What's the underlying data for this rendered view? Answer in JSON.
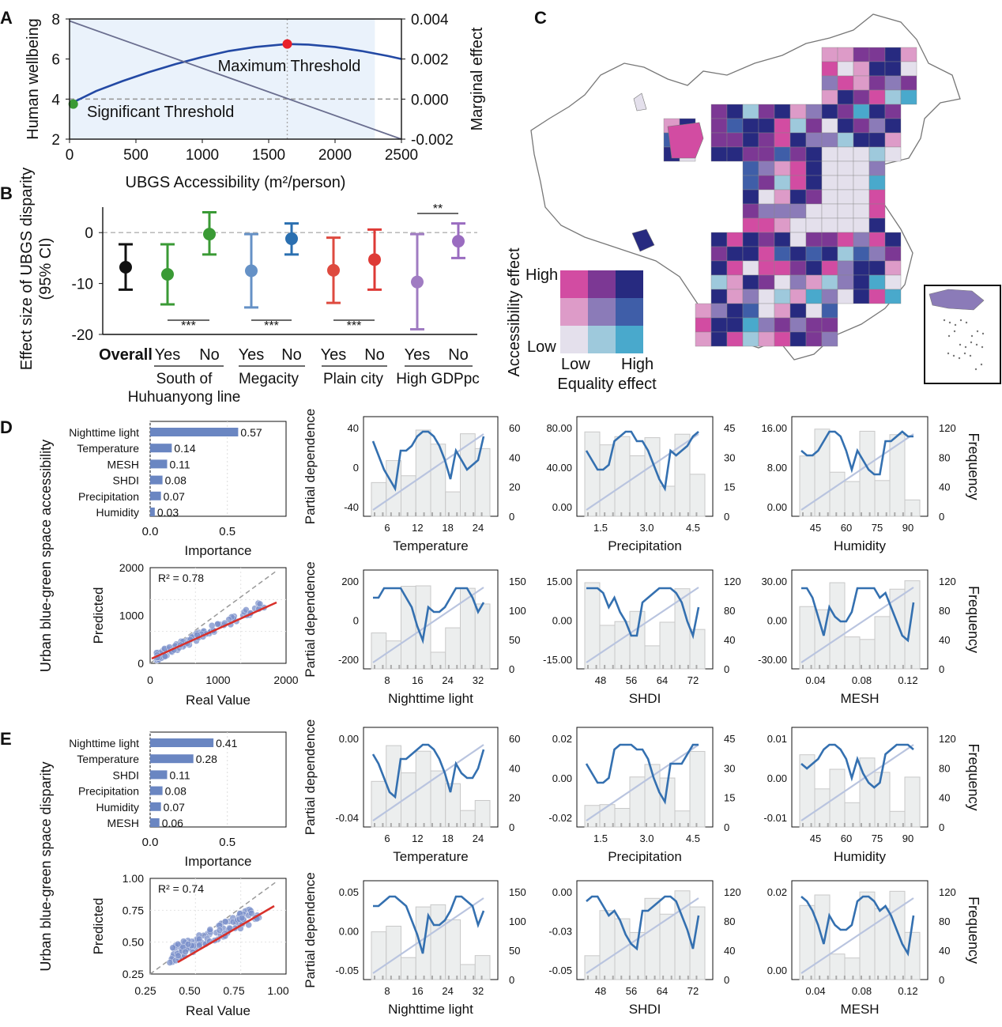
{
  "panel_labels": {
    "a": "A",
    "b": "B",
    "c": "C",
    "d": "D",
    "e": "E"
  },
  "chart_data": [
    {
      "id": "A",
      "type": "line",
      "xlabel": "UBGS Accessibility (m²/person)",
      "ylabel_left": "Human wellbeing",
      "ylabel_right": "Marginal effect",
      "xlim": [
        0,
        2500
      ],
      "ylim_left": [
        2,
        8
      ],
      "ylim_right": [
        -0.002,
        0.004
      ],
      "xticks": [
        0,
        500,
        1000,
        1500,
        2000,
        2500
      ],
      "yticks_left": [
        2,
        4,
        6,
        8
      ],
      "yticks_right": [
        "-0.002",
        "0.000",
        "0.002",
        "0.004"
      ],
      "shaded_range": [
        0,
        2300
      ],
      "series": [
        {
          "axis": "left",
          "x": [
            0,
            200,
            400,
            600,
            800,
            1000,
            1200,
            1400,
            1640,
            1800,
            2000,
            2200,
            2400,
            2500
          ],
          "y": [
            3.75,
            4.4,
            4.9,
            5.35,
            5.75,
            6.1,
            6.4,
            6.6,
            6.75,
            6.72,
            6.6,
            6.4,
            6.15,
            6.0
          ]
        },
        {
          "axis": "right",
          "x": [
            0,
            2500
          ],
          "y": [
            0.0039,
            -0.002
          ]
        }
      ],
      "annotations": [
        {
          "text": "Maximum Threshold",
          "x": 1640,
          "y": 6.75,
          "color": "#e8202a"
        },
        {
          "text": "Significant Threshold",
          "x": 28,
          "y": 3.75,
          "color": "#3a9a35"
        }
      ]
    },
    {
      "id": "B",
      "type": "errorbar",
      "ylabel": "Effect size of UBGS disparity (95% CI)",
      "ylim": [
        -20,
        5
      ],
      "yticks": [
        0,
        -10,
        -20
      ],
      "points": [
        {
          "label": "Overall",
          "mean": -6.8,
          "lo": -11.2,
          "hi": -2.3,
          "color": "#111111"
        },
        {
          "label": "Yes",
          "mean": -8.2,
          "lo": -14.1,
          "hi": -2.3,
          "color": "#3a9a35"
        },
        {
          "label": "No",
          "mean": -0.3,
          "lo": -4.3,
          "hi": 4.0,
          "color": "#3a9a35"
        },
        {
          "label": "Yes",
          "mean": -7.5,
          "lo": -14.7,
          "hi": -0.3,
          "color": "#6591c6"
        },
        {
          "label": "No",
          "mean": -1.2,
          "lo": -4.3,
          "hi": 1.8,
          "color": "#2a6fb0"
        },
        {
          "label": "Yes",
          "mean": -7.4,
          "lo": -13.8,
          "hi": -1.0,
          "color": "#de4a3f"
        },
        {
          "label": "No",
          "mean": -5.3,
          "lo": -11.2,
          "hi": 0.6,
          "color": "#de3a36"
        },
        {
          "label": "Yes",
          "mean": -9.7,
          "lo": -19.0,
          "hi": -0.3,
          "color": "#a07cc2"
        },
        {
          "label": "No",
          "mean": -1.7,
          "lo": -5.0,
          "hi": 1.8,
          "color": "#9a6cc0"
        }
      ],
      "groups": [
        "South of Huhuanyong line",
        "Megacity",
        "Plain city",
        "High GDPpc"
      ],
      "significance": [
        "***",
        "***",
        "***",
        "**"
      ]
    },
    {
      "id": "C",
      "type": "heatmap",
      "legend_title_y": "Accessibility effect",
      "legend_title_x": "Equality effect",
      "legend_labels": {
        "high_y": "High",
        "low_y": "Low",
        "low_x": "Low",
        "high_x": "High"
      },
      "bivariate_colors": [
        [
          "#d24ca2",
          "#7c3894",
          "#272a80"
        ],
        [
          "#dd9bc8",
          "#8b7bb8",
          "#3f5ea8"
        ],
        [
          "#e4e0ec",
          "#9ec9dc",
          "#49a9cc"
        ]
      ]
    },
    {
      "id": "D",
      "type": "bar",
      "ylabel": "Urban blue-green space accessibility",
      "importance": {
        "categories": [
          "Nighttime light",
          "Temperature",
          "MESH",
          "SHDI",
          "Precipitation",
          "Humidity"
        ],
        "values": [
          0.57,
          0.14,
          0.11,
          0.08,
          0.07,
          0.03
        ],
        "labels": [
          "0.57",
          "0.14",
          "0.11",
          "0.08",
          "0.07",
          "0.03"
        ],
        "xlabel": "Importance",
        "xticks": [
          "0.0",
          "0.5"
        ]
      },
      "scatter": {
        "r2": "R² = 0.78",
        "xlabel": "Real Value",
        "ylabel": "Predicted",
        "xticks": [
          "0",
          "1000",
          "2000"
        ],
        "yticks": [
          "0",
          "1000",
          "2000"
        ],
        "lim": [
          0,
          2000
        ]
      },
      "pdp": [
        {
          "feature": "Temperature",
          "xticks": [
            "6",
            "12",
            "18",
            "24"
          ],
          "yticks": [
            "40",
            "0",
            "-40"
          ],
          "rticks": [
            "0",
            "20",
            "40",
            "60"
          ]
        },
        {
          "feature": "Precipitation",
          "xticks": [
            "1.5",
            "3.0",
            "4.5"
          ],
          "yticks": [
            "80.00",
            "40.00",
            "0.00"
          ],
          "rticks": [
            "0",
            "15",
            "30",
            "45"
          ]
        },
        {
          "feature": "Humidity",
          "xticks": [
            "45",
            "60",
            "75",
            "90"
          ],
          "yticks": [
            "16.00",
            "8.00",
            "0.00"
          ],
          "rticks": [
            "0",
            "40",
            "80",
            "120"
          ]
        },
        {
          "feature": "Nighttime light",
          "xticks": [
            "8",
            "16",
            "24",
            "32"
          ],
          "yticks": [
            "200",
            "0",
            "-200"
          ],
          "rticks": [
            "0",
            "50",
            "100",
            "150"
          ]
        },
        {
          "feature": "SHDI",
          "xticks": [
            "48",
            "56",
            "64",
            "72"
          ],
          "yticks": [
            "15.00",
            "0.00",
            "-15.00"
          ],
          "rticks": [
            "0",
            "40",
            "80",
            "120"
          ]
        },
        {
          "feature": "MESH",
          "xticks": [
            "0.04",
            "0.08",
            "0.12"
          ],
          "yticks": [
            "30.00",
            "0.00",
            "-30.00"
          ],
          "rticks": [
            "0",
            "40",
            "80",
            "120"
          ]
        }
      ]
    },
    {
      "id": "E",
      "type": "bar",
      "ylabel": "Urban blue-green space disparity",
      "importance": {
        "categories": [
          "Nighttime light",
          "Temperature",
          "SHDI",
          "Precipitation",
          "Humidity",
          "MESH"
        ],
        "values": [
          0.41,
          0.28,
          0.11,
          0.08,
          0.07,
          0.06
        ],
        "labels": [
          "0.41",
          "0.28",
          "0.11",
          "0.08",
          "0.07",
          "0.06"
        ],
        "xlabel": "Importance",
        "xticks": [
          "0.0",
          "0.5"
        ]
      },
      "scatter": {
        "r2": "R² = 0.74",
        "xlabel": "Real Value",
        "ylabel": "Predicted",
        "xticks": [
          "0.25",
          "0.50",
          "0.75",
          "1.00"
        ],
        "yticks": [
          "0.25",
          "0.50",
          "0.75",
          "1.00"
        ],
        "lim": [
          0.25,
          1.0
        ]
      },
      "pdp": [
        {
          "feature": "Temperature",
          "xticks": [
            "6",
            "12",
            "18",
            "24"
          ],
          "yticks": [
            "0.00",
            "-0.04"
          ],
          "rticks": [
            "0",
            "20",
            "40",
            "60"
          ]
        },
        {
          "feature": "Precipitation",
          "xticks": [
            "1.5",
            "3.0",
            "4.5"
          ],
          "yticks": [
            "0.02",
            "0.00",
            "-0.02"
          ],
          "rticks": [
            "0",
            "15",
            "30",
            "45"
          ]
        },
        {
          "feature": "Humidity",
          "xticks": [
            "45",
            "60",
            "75",
            "90"
          ],
          "yticks": [
            "0.01",
            "0.00",
            "-0.01"
          ],
          "rticks": [
            "0",
            "40",
            "80",
            "120"
          ]
        },
        {
          "feature": "Nighttime light",
          "xticks": [
            "8",
            "16",
            "24",
            "32"
          ],
          "yticks": [
            "0.05",
            "0.00",
            "-0.05"
          ],
          "rticks": [
            "0",
            "50",
            "100",
            "150"
          ]
        },
        {
          "feature": "SHDI",
          "xticks": [
            "48",
            "56",
            "64",
            "72"
          ],
          "yticks": [
            "0.00",
            "-0.03",
            "-0.05"
          ],
          "rticks": [
            "0",
            "40",
            "80",
            "120"
          ]
        },
        {
          "feature": "MESH",
          "xticks": [
            "0.04",
            "0.08",
            "0.12"
          ],
          "yticks": [
            "0.02",
            "0.00"
          ],
          "rticks": [
            "0",
            "40",
            "80",
            "120"
          ]
        }
      ],
      "common": {
        "pdp_ylabel": "Partial dependence",
        "freq_label": "Frequency"
      }
    }
  ]
}
